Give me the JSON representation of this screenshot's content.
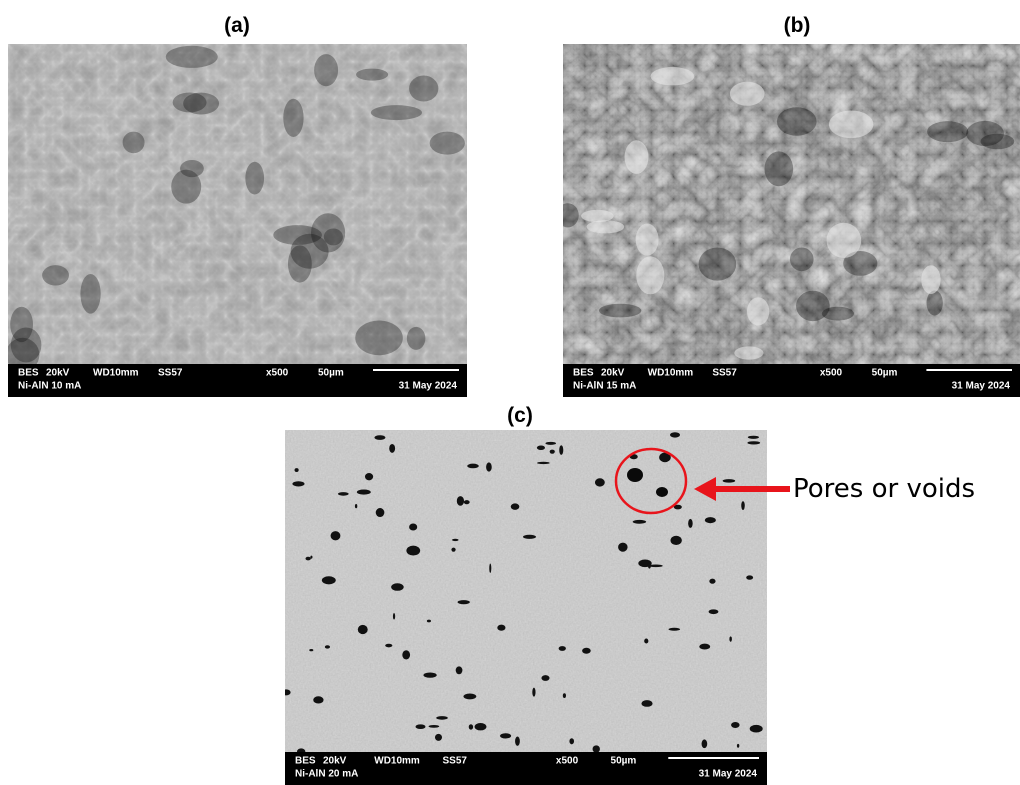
{
  "panels": [
    {
      "label": "(a)",
      "info": {
        "detector": "BES",
        "voltage": "20kV",
        "wd": "WD10mm",
        "ss": "SS57",
        "magnification": "x500",
        "scale": "50µm",
        "sample": "Ni-AlN 10 mA",
        "date": "31 May 2024"
      }
    },
    {
      "label": "(b)",
      "info": {
        "detector": "BES",
        "voltage": "20kV",
        "wd": "WD10mm",
        "ss": "SS57",
        "magnification": "x500",
        "scale": "50µm",
        "sample": "Ni-AlN 15 mA",
        "date": "31 May 2024"
      }
    },
    {
      "label": "(c)",
      "info": {
        "detector": "BES",
        "voltage": "20kV",
        "wd": "WD10mm",
        "ss": "SS57",
        "magnification": "x500",
        "scale": "50µm",
        "sample": "Ni-AlN 20 mA",
        "date": "31 May 2024"
      }
    }
  ],
  "annotation": "Pores or voids"
}
